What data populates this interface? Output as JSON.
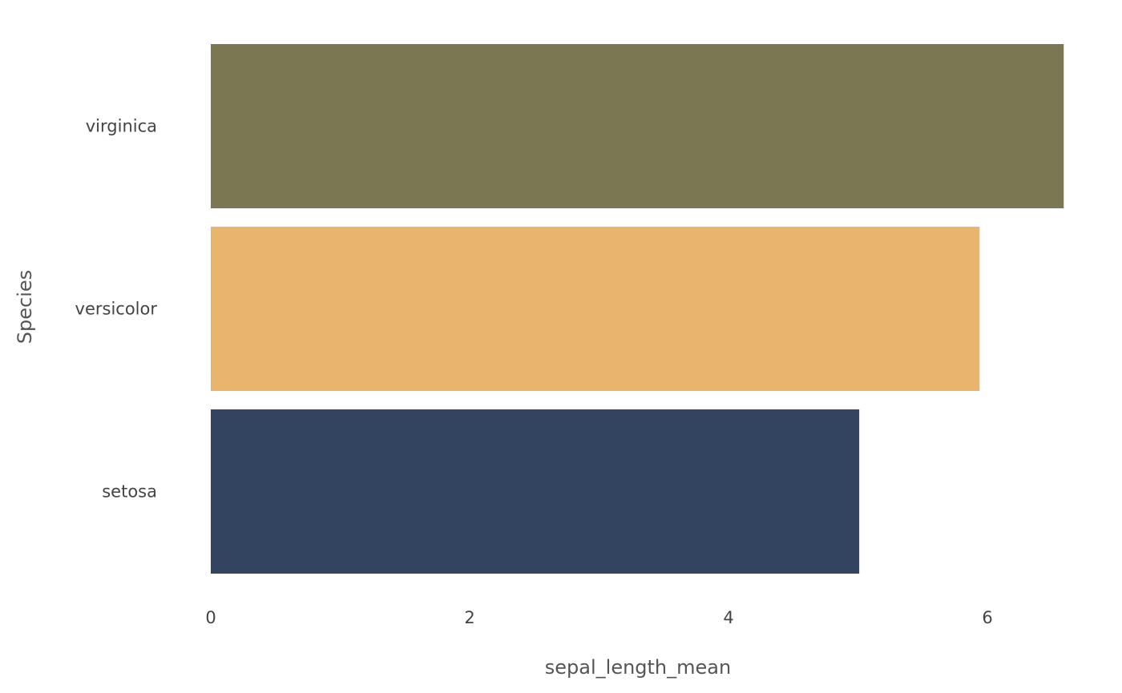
{
  "chart_data": {
    "type": "bar",
    "orientation": "horizontal",
    "categories": [
      "virginica",
      "versicolor",
      "setosa"
    ],
    "values": [
      6.59,
      5.94,
      5.01
    ],
    "colors": [
      "#7b7752",
      "#e9b46e",
      "#334460"
    ],
    "xlabel": "sepal_length_mean",
    "ylabel": "Species",
    "xlim": [
      0,
      6.6
    ],
    "xticks": [
      "0",
      "2",
      "4",
      "6"
    ],
    "grid": false,
    "legend": "none"
  }
}
